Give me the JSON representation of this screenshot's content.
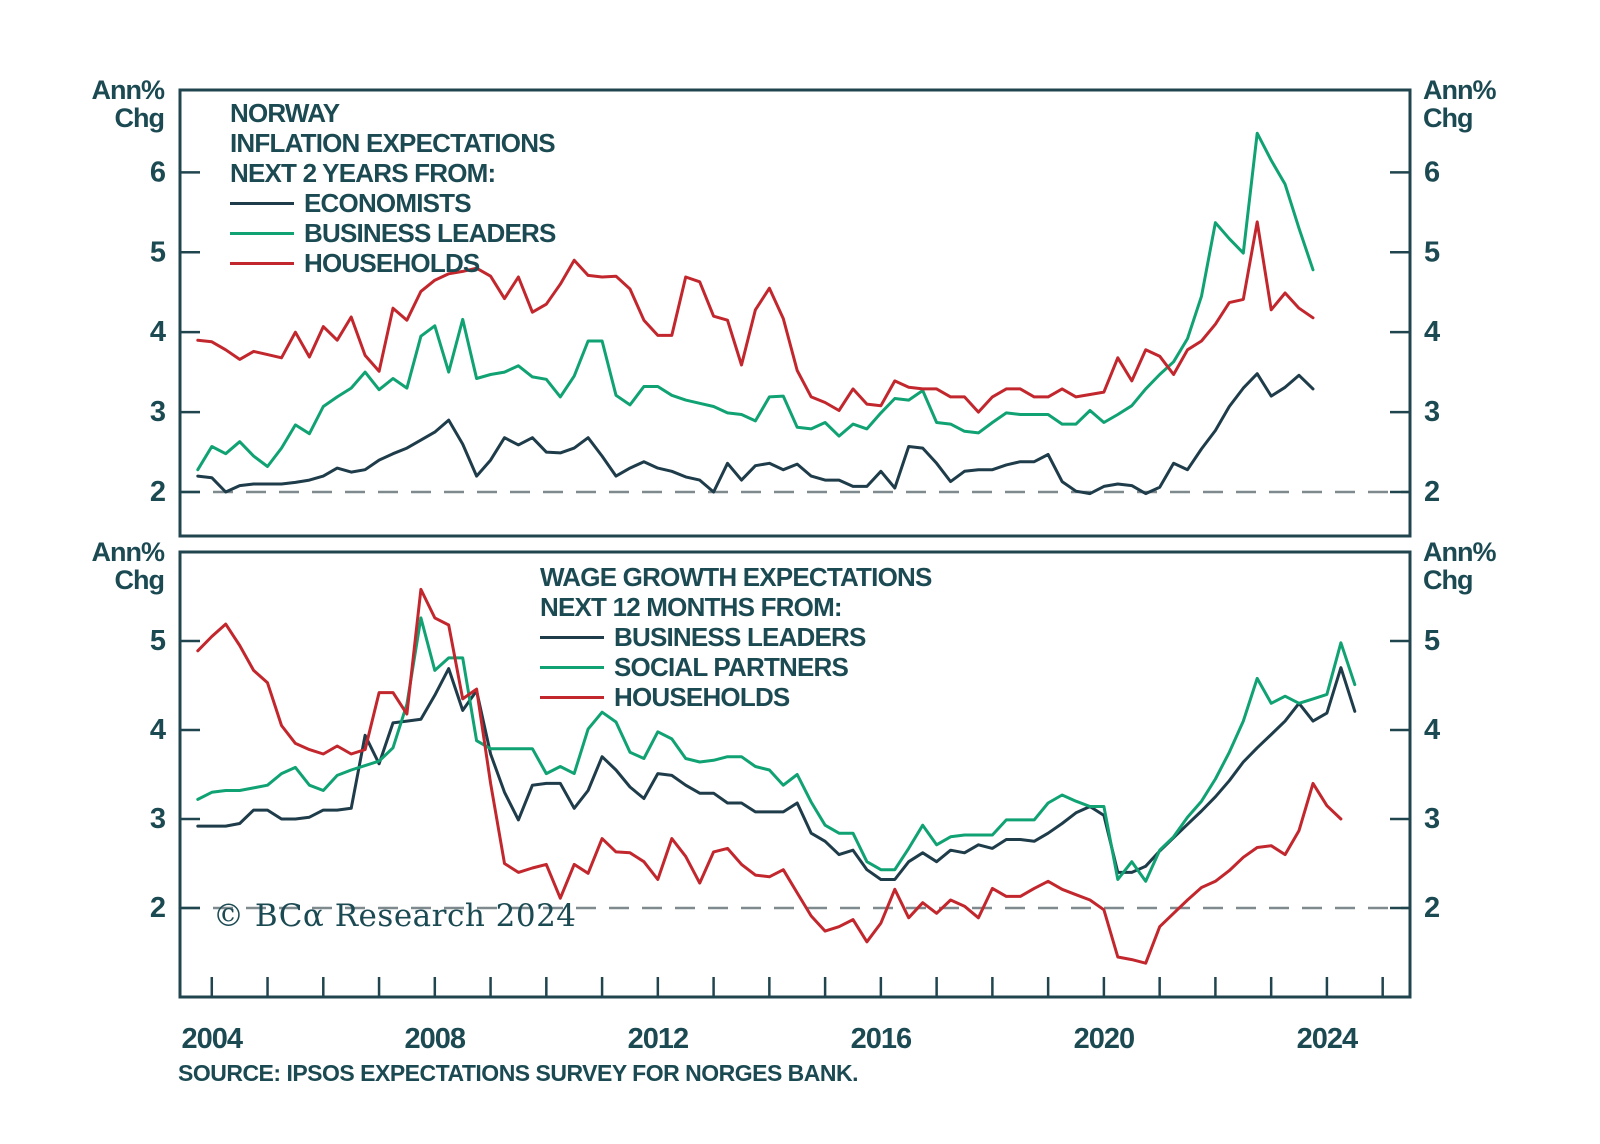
{
  "page_title": "Norway inflation and wage growth expectations",
  "colors": {
    "text": "#1c4a53",
    "frame": "#20454e",
    "dashed": "#7f8a8e",
    "background": "#ffffff",
    "economists_navy": "#1e3c4a",
    "business_green": "#10a273",
    "households_red": "#c2272d"
  },
  "copyright": "© BCα Research 2024",
  "source": "SOURCE: IPSOS EXPECTATIONS SURVEY FOR NORGES BANK.",
  "x_axis": {
    "minor_tick_years_start": 2004,
    "minor_tick_years_end": 2025,
    "labeled_years": [
      2004,
      2008,
      2012,
      2016,
      2020,
      2024
    ],
    "xlim": [
      2003.43,
      2025.49
    ]
  },
  "chart_data": [
    {
      "type": "line",
      "panel": "top",
      "title_lines": [
        "NORWAY",
        "INFLATION EXPECTATIONS",
        "NEXT 2 YEARS FROM:"
      ],
      "unit_label": [
        "Ann%",
        "Chg"
      ],
      "legend_position": "top-left-inside",
      "grid": "off",
      "ylim": [
        1.45,
        7.03
      ],
      "yticks": [
        2,
        3,
        4,
        5,
        6
      ],
      "dashed_line_y": 2,
      "x_start": 2003.75,
      "x_step": 0.25,
      "series": [
        {
          "name": "ECONOMISTS",
          "color": "#1e3c4a",
          "values": [
            2.2,
            2.18,
            2.0,
            2.08,
            2.1,
            2.1,
            2.1,
            2.12,
            2.15,
            2.2,
            2.3,
            2.25,
            2.28,
            2.4,
            2.48,
            2.55,
            2.65,
            2.75,
            2.9,
            2.6,
            2.2,
            2.4,
            2.68,
            2.59,
            2.68,
            2.5,
            2.49,
            2.55,
            2.68,
            2.45,
            2.2,
            2.3,
            2.38,
            2.3,
            2.26,
            2.19,
            2.15,
            2.0,
            2.36,
            2.15,
            2.33,
            2.36,
            2.28,
            2.35,
            2.2,
            2.15,
            2.15,
            2.07,
            2.07,
            2.26,
            2.05,
            2.57,
            2.55,
            2.36,
            2.13,
            2.26,
            2.28,
            2.28,
            2.34,
            2.38,
            2.38,
            2.47,
            2.13,
            2.01,
            1.98,
            2.07,
            2.1,
            2.08,
            1.98,
            2.06,
            2.36,
            2.28,
            2.54,
            2.77,
            3.07,
            3.3,
            3.48,
            3.2,
            3.31,
            3.46,
            3.29
          ]
        },
        {
          "name": "BUSINESS LEADERS",
          "color": "#10a273",
          "values": [
            2.28,
            2.57,
            2.48,
            2.63,
            2.45,
            2.32,
            2.55,
            2.84,
            2.73,
            3.07,
            3.19,
            3.3,
            3.5,
            3.28,
            3.42,
            3.3,
            3.95,
            4.08,
            3.5,
            4.16,
            3.42,
            3.47,
            3.5,
            3.58,
            3.44,
            3.41,
            3.19,
            3.45,
            3.89,
            3.89,
            3.21,
            3.09,
            3.32,
            3.32,
            3.21,
            3.15,
            3.11,
            3.07,
            2.99,
            2.97,
            2.89,
            3.19,
            3.2,
            2.81,
            2.79,
            2.87,
            2.7,
            2.85,
            2.79,
            2.99,
            3.17,
            3.15,
            3.27,
            2.87,
            2.85,
            2.76,
            2.74,
            2.87,
            2.99,
            2.97,
            2.97,
            2.97,
            2.85,
            2.85,
            3.02,
            2.87,
            2.97,
            3.08,
            3.29,
            3.47,
            3.63,
            3.92,
            4.45,
            5.37,
            5.17,
            4.99,
            6.49,
            6.15,
            5.85,
            5.3,
            4.78
          ]
        },
        {
          "name": "HOUSEHOLDS",
          "color": "#c2272d",
          "values": [
            3.9,
            3.88,
            3.78,
            3.66,
            3.76,
            3.72,
            3.68,
            4.0,
            3.69,
            4.07,
            3.9,
            4.19,
            3.71,
            3.51,
            4.3,
            4.15,
            4.51,
            4.65,
            4.73,
            4.76,
            4.8,
            4.7,
            4.42,
            4.69,
            4.25,
            4.35,
            4.6,
            4.9,
            4.71,
            4.69,
            4.7,
            4.54,
            4.15,
            3.96,
            3.96,
            4.69,
            4.63,
            4.2,
            4.15,
            3.59,
            4.28,
            4.55,
            4.17,
            3.52,
            3.19,
            3.12,
            3.02,
            3.29,
            3.1,
            3.08,
            3.39,
            3.31,
            3.29,
            3.29,
            3.19,
            3.19,
            3.0,
            3.19,
            3.29,
            3.29,
            3.19,
            3.19,
            3.29,
            3.19,
            3.22,
            3.25,
            3.68,
            3.39,
            3.78,
            3.7,
            3.47,
            3.78,
            3.89,
            4.1,
            4.37,
            4.41,
            5.38,
            4.28,
            4.49,
            4.3,
            4.18
          ]
        }
      ]
    },
    {
      "type": "line",
      "panel": "bottom",
      "title_lines": [
        "WAGE GROWTH EXPECTATIONS",
        "NEXT 12 MONTHS FROM:"
      ],
      "unit_label": [
        "Ann%",
        "Chg"
      ],
      "legend_position": "top-center-inside",
      "grid": "off",
      "ylim": [
        1.0,
        6.0
      ],
      "yticks": [
        2,
        3,
        4,
        5
      ],
      "dashed_line_y": 2,
      "x_start": 2003.75,
      "x_step": 0.25,
      "series": [
        {
          "name": "BUSINESS LEADERS",
          "color": "#1e3c4a",
          "values": [
            2.92,
            2.92,
            2.92,
            2.95,
            3.1,
            3.1,
            3.0,
            3.0,
            3.02,
            3.1,
            3.1,
            3.12,
            3.94,
            3.62,
            4.08,
            4.1,
            4.12,
            4.39,
            4.69,
            4.22,
            4.44,
            3.73,
            3.3,
            2.99,
            3.38,
            3.4,
            3.4,
            3.12,
            3.32,
            3.7,
            3.55,
            3.36,
            3.23,
            3.51,
            3.49,
            3.38,
            3.29,
            3.29,
            3.18,
            3.18,
            3.08,
            3.08,
            3.08,
            3.18,
            2.84,
            2.75,
            2.6,
            2.65,
            2.43,
            2.32,
            2.32,
            2.52,
            2.62,
            2.52,
            2.65,
            2.62,
            2.71,
            2.67,
            2.77,
            2.77,
            2.75,
            2.84,
            2.95,
            3.07,
            3.14,
            3.04,
            2.4,
            2.4,
            2.47,
            2.64,
            2.79,
            2.94,
            3.09,
            3.25,
            3.43,
            3.64,
            3.8,
            3.95,
            4.1,
            4.3,
            4.1,
            4.19,
            4.7,
            4.21
          ]
        },
        {
          "name": "SOCIAL PARTNERS",
          "color": "#10a273",
          "values": [
            3.22,
            3.3,
            3.32,
            3.32,
            3.35,
            3.38,
            3.51,
            3.58,
            3.38,
            3.32,
            3.49,
            3.55,
            3.6,
            3.65,
            3.8,
            4.29,
            5.26,
            4.67,
            4.81,
            4.81,
            3.88,
            3.79,
            3.79,
            3.79,
            3.79,
            3.51,
            3.59,
            3.51,
            4.01,
            4.2,
            4.09,
            3.75,
            3.68,
            3.98,
            3.9,
            3.68,
            3.64,
            3.66,
            3.7,
            3.7,
            3.59,
            3.55,
            3.38,
            3.5,
            3.19,
            2.93,
            2.84,
            2.84,
            2.52,
            2.43,
            2.43,
            2.67,
            2.93,
            2.71,
            2.8,
            2.82,
            2.82,
            2.82,
            2.99,
            2.99,
            2.99,
            3.18,
            3.27,
            3.2,
            3.14,
            3.14,
            2.32,
            2.52,
            2.3,
            2.65,
            2.8,
            3.02,
            3.2,
            3.45,
            3.75,
            4.1,
            4.58,
            4.3,
            4.38,
            4.3,
            4.35,
            4.4,
            4.98,
            4.51
          ]
        },
        {
          "name": "HOUSEHOLDS",
          "color": "#c2272d",
          "values": [
            4.89,
            5.05,
            5.19,
            4.95,
            4.67,
            4.53,
            4.05,
            3.85,
            3.78,
            3.73,
            3.82,
            3.73,
            3.78,
            4.42,
            4.42,
            4.18,
            5.58,
            5.26,
            5.18,
            4.35,
            4.46,
            3.4,
            2.5,
            2.4,
            2.45,
            2.49,
            2.11,
            2.49,
            2.39,
            2.78,
            2.63,
            2.62,
            2.52,
            2.32,
            2.78,
            2.58,
            2.28,
            2.63,
            2.67,
            2.49,
            2.37,
            2.35,
            2.43,
            2.17,
            1.91,
            1.74,
            1.79,
            1.87,
            1.62,
            1.83,
            2.21,
            1.89,
            2.06,
            1.94,
            2.09,
            2.02,
            1.89,
            2.22,
            2.13,
            2.13,
            2.22,
            2.3,
            2.21,
            2.15,
            2.09,
            1.98,
            1.45,
            1.42,
            1.38,
            1.79,
            1.94,
            2.09,
            2.23,
            2.3,
            2.42,
            2.57,
            2.68,
            2.7,
            2.6,
            2.87,
            3.4,
            3.15,
            3.0
          ]
        }
      ]
    }
  ]
}
